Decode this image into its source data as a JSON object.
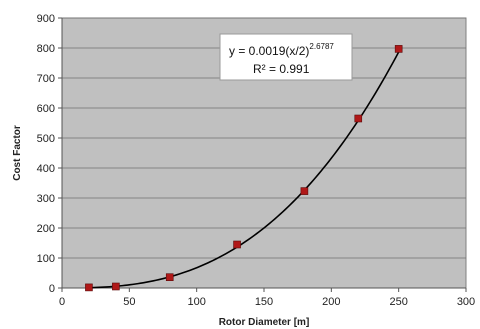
{
  "chart_data": {
    "type": "scatter",
    "xlabel": "Rotor Diameter [m]",
    "ylabel": "Cost Factor",
    "xlim": [
      0,
      300
    ],
    "ylim": [
      0,
      900
    ],
    "xticks": [
      0,
      50,
      100,
      150,
      200,
      250,
      300
    ],
    "yticks": [
      0,
      100,
      200,
      300,
      400,
      500,
      600,
      700,
      800,
      900
    ],
    "grid": true,
    "plot_background": "#c0c0c0",
    "marker_color": "#b01818",
    "trendline_color": "#000000",
    "series": [
      {
        "x": [
          20,
          40,
          80,
          130,
          180,
          220,
          250
        ],
        "y": [
          2,
          5,
          36,
          145,
          323,
          565,
          797
        ]
      }
    ],
    "trendline": {
      "coefficient": 0.0019,
      "exponent": 2.6787,
      "equation_prefix": "y = 0.0019(x/2)",
      "equation_exponent": "2.6787",
      "r_squared_label": "R² = 0.991"
    }
  }
}
